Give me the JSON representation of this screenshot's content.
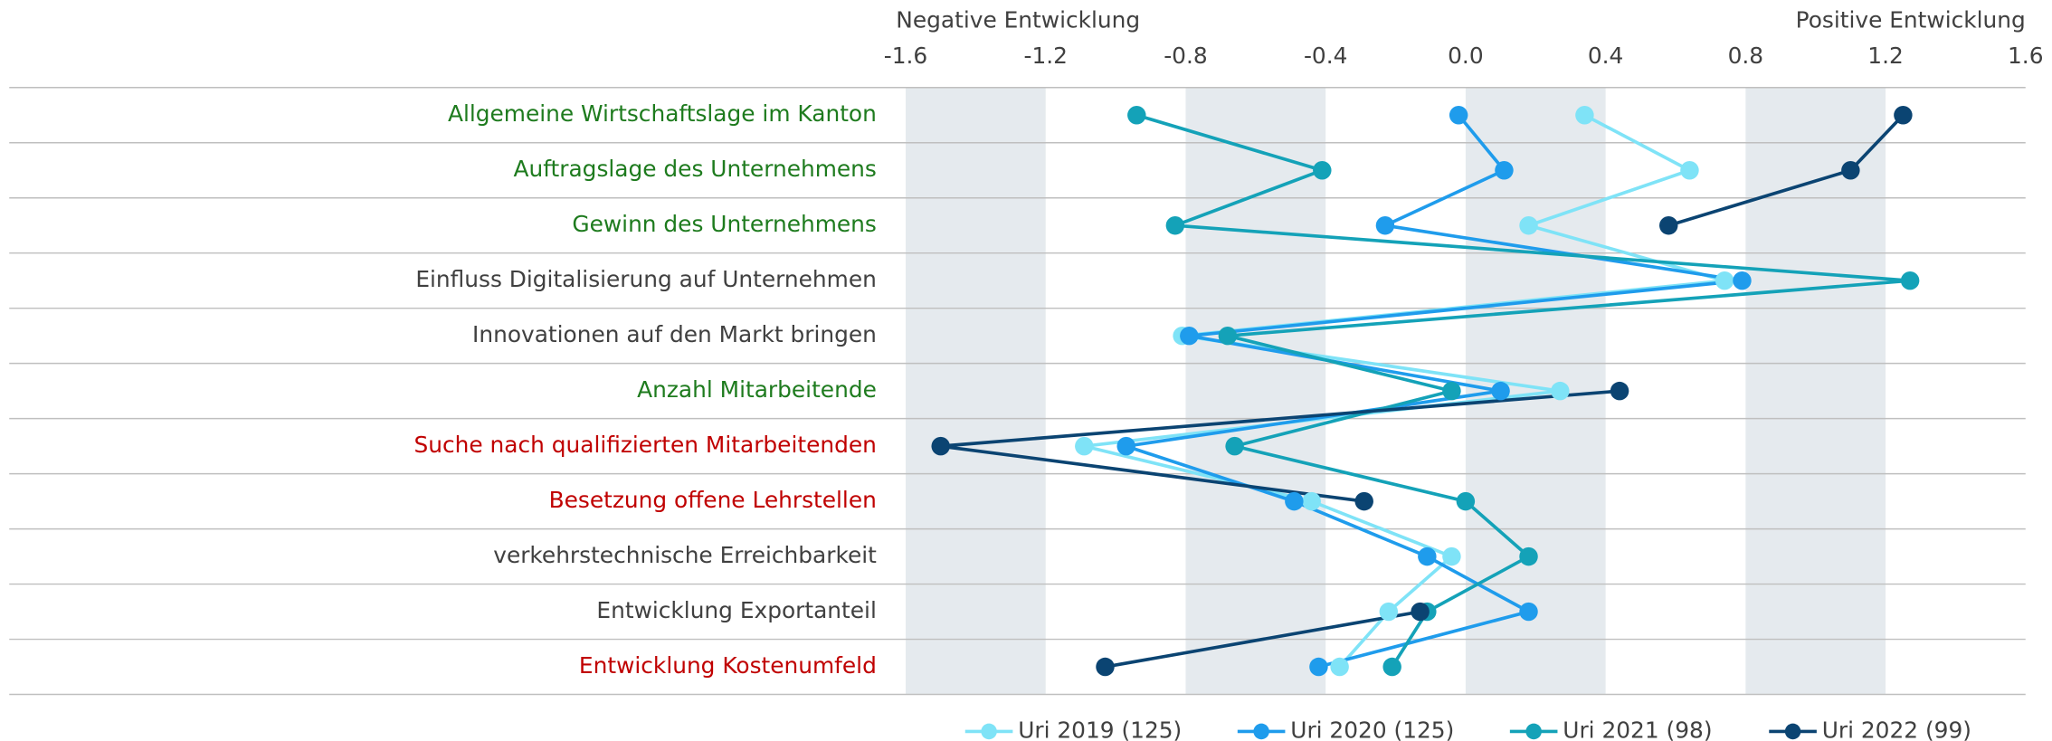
{
  "chart_data": {
    "type": "dot-line",
    "axis_note_left": "Negative Entwicklung",
    "axis_note_right": "Positive Entwicklung",
    "categories": [
      "Allgemeine Wirtschaftslage im Kanton",
      "Auftragslage des Unternehmens",
      "Gewinn des Unternehmens",
      "Einfluss Digitalisierung auf Unternehmen",
      "Innovationen auf den Markt bringen",
      "Anzahl Mitarbeitende",
      "Suche nach qualifizierten Mitarbeitenden",
      "Besetzung offene Lehrstellen",
      "verkehrstechnische Erreichbarkeit",
      "Entwicklung Exportanteil",
      "Entwicklung Kostenumfeld"
    ],
    "category_colors": [
      "#1e7b1e",
      "#1e7b1e",
      "#1e7b1e",
      "#404040",
      "#404040",
      "#1e7b1e",
      "#c00000",
      "#c00000",
      "#404040",
      "#404040",
      "#c00000"
    ],
    "series": [
      {
        "name": "Uri 2019 (125)",
        "color": "#7fe3f7",
        "values": [
          0.34,
          0.64,
          0.18,
          0.74,
          -0.81,
          0.27,
          -1.09,
          -0.44,
          -0.04,
          -0.22,
          -0.36
        ]
      },
      {
        "name": "Uri 2020 (125)",
        "color": "#1f9cec",
        "values": [
          -0.02,
          0.11,
          -0.23,
          0.79,
          -0.79,
          0.1,
          -0.97,
          -0.49,
          -0.11,
          0.18,
          -0.42
        ]
      },
      {
        "name": "Uri 2021 (98)",
        "color": "#14a2b8",
        "values": [
          -0.94,
          -0.41,
          -0.83,
          1.27,
          -0.68,
          -0.04,
          -0.66,
          0.0,
          0.18,
          -0.11,
          -0.21
        ]
      },
      {
        "name": "Uri 2022 (99)",
        "color": "#0b4472",
        "values": [
          1.25,
          1.1,
          0.58,
          null,
          null,
          0.44,
          -1.5,
          -0.29,
          null,
          -0.13,
          -1.03
        ]
      }
    ],
    "xlim": [
      -1.6,
      1.6
    ],
    "xticks": [
      -1.6,
      -1.2,
      -0.8,
      -0.4,
      {
        "value": 0,
        "label": "0.0"
      },
      0.4,
      0.8,
      1.2,
      1.6
    ],
    "bands": true
  }
}
